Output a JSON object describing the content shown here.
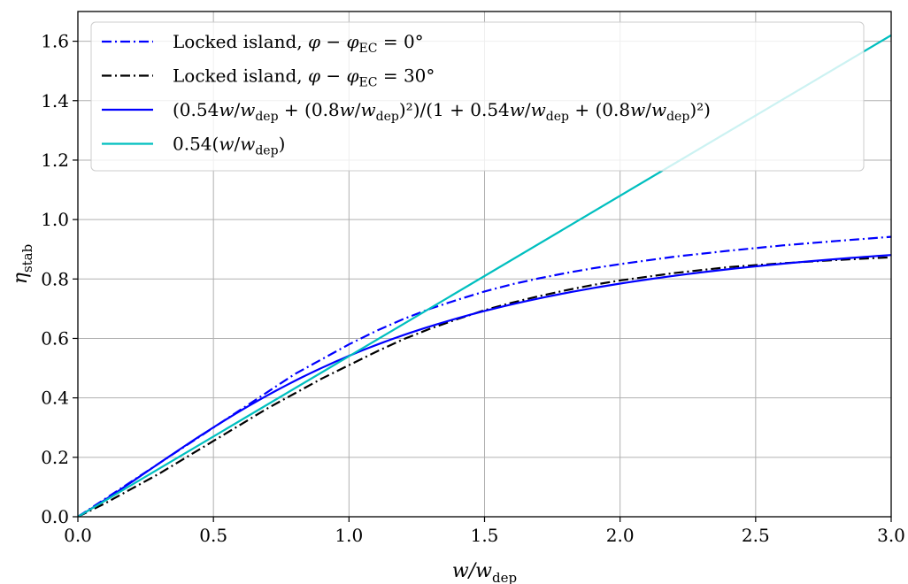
{
  "chart_data": {
    "type": "line",
    "xlabel": {
      "base": "w/w",
      "sub": "dep"
    },
    "ylabel": {
      "base": "η",
      "sub": "stab"
    },
    "xlim": [
      0.0,
      3.0
    ],
    "ylim": [
      0.0,
      1.7
    ],
    "xticks": [
      0.0,
      0.5,
      1.0,
      1.5,
      2.0,
      2.5,
      3.0
    ],
    "xtick_labels": [
      "0.0",
      "0.5",
      "1.0",
      "1.5",
      "2.0",
      "2.5",
      "3.0"
    ],
    "yticks": [
      0.0,
      0.2,
      0.4,
      0.6,
      0.8,
      1.0,
      1.2,
      1.4,
      1.6
    ],
    "ytick_labels": [
      "0.0",
      "0.2",
      "0.4",
      "0.6",
      "0.8",
      "1.0",
      "1.2",
      "1.4",
      "1.6"
    ],
    "grid": true,
    "legend_position": "top-left",
    "series": [
      {
        "legend_parts": [
          {
            "t": "Locked island, "
          },
          {
            "t": "φ",
            "it": true
          },
          {
            "t": " − "
          },
          {
            "t": "φ",
            "it": true
          },
          {
            "t": "EC",
            "sub": true
          },
          {
            "t": " = 0°"
          }
        ],
        "color": "#0000ff",
        "style": "dashdot",
        "x": [
          0.0,
          0.1,
          0.2,
          0.3,
          0.4,
          0.5,
          0.6,
          0.7,
          0.8,
          0.9,
          1.0,
          1.1,
          1.2,
          1.3,
          1.4,
          1.5,
          1.6,
          1.7,
          1.8,
          1.9,
          2.0,
          2.2,
          2.4,
          2.6,
          2.8,
          3.0
        ],
        "y": [
          0.0,
          0.06,
          0.12,
          0.18,
          0.24,
          0.3,
          0.36,
          0.42,
          0.48,
          0.53,
          0.58,
          0.625,
          0.665,
          0.7,
          0.73,
          0.758,
          0.782,
          0.802,
          0.82,
          0.836,
          0.85,
          0.875,
          0.895,
          0.913,
          0.928,
          0.942
        ]
      },
      {
        "legend_parts": [
          {
            "t": "Locked island, "
          },
          {
            "t": "φ",
            "it": true
          },
          {
            "t": " − "
          },
          {
            "t": "φ",
            "it": true
          },
          {
            "t": "EC",
            "sub": true
          },
          {
            "t": " = 30°"
          }
        ],
        "color": "#000000",
        "style": "dashdot",
        "x": [
          0.0,
          0.1,
          0.2,
          0.3,
          0.4,
          0.5,
          0.6,
          0.7,
          0.8,
          0.9,
          1.0,
          1.1,
          1.2,
          1.3,
          1.4,
          1.5,
          1.6,
          1.7,
          1.8,
          1.9,
          2.0,
          2.2,
          2.4,
          2.6,
          2.8,
          3.0
        ],
        "y": [
          0.0,
          0.045,
          0.095,
          0.145,
          0.2,
          0.255,
          0.31,
          0.365,
          0.415,
          0.465,
          0.51,
          0.555,
          0.597,
          0.633,
          0.665,
          0.695,
          0.72,
          0.742,
          0.762,
          0.78,
          0.795,
          0.82,
          0.84,
          0.853,
          0.864,
          0.873
        ]
      },
      {
        "legend_parts": [
          {
            "t": "(0.54"
          },
          {
            "t": "w",
            "it": true
          },
          {
            "t": "/"
          },
          {
            "t": "w",
            "it": true
          },
          {
            "t": "dep",
            "sub": true
          },
          {
            "t": " + (0.8"
          },
          {
            "t": "w",
            "it": true
          },
          {
            "t": "/"
          },
          {
            "t": "w",
            "it": true
          },
          {
            "t": "dep",
            "sub": true
          },
          {
            "t": ")²)/(1 + 0.54"
          },
          {
            "t": "w",
            "it": true
          },
          {
            "t": "/"
          },
          {
            "t": "w",
            "it": true
          },
          {
            "t": "dep",
            "sub": true
          },
          {
            "t": " + (0.8"
          },
          {
            "t": "w",
            "it": true
          },
          {
            "t": "/"
          },
          {
            "t": "w",
            "it": true
          },
          {
            "t": "dep",
            "sub": true
          },
          {
            "t": ")²)"
          }
        ],
        "color": "#0000ff",
        "style": "solid",
        "formula": "rational",
        "x": [
          0.0,
          0.5,
          1.0,
          1.5,
          2.0,
          2.5,
          3.0
        ],
        "y": [
          0.0,
          0.295,
          0.541,
          0.69,
          0.781,
          0.838,
          0.879
        ]
      },
      {
        "legend_parts": [
          {
            "t": "0.54("
          },
          {
            "t": "w",
            "it": true
          },
          {
            "t": "/"
          },
          {
            "t": "w",
            "it": true
          },
          {
            "t": "dep",
            "sub": true
          },
          {
            "t": ")"
          }
        ],
        "color": "#00bfbf",
        "style": "solid",
        "formula": "linear",
        "x": [
          0.0,
          3.0
        ],
        "y": [
          0.0,
          1.62
        ]
      }
    ]
  }
}
